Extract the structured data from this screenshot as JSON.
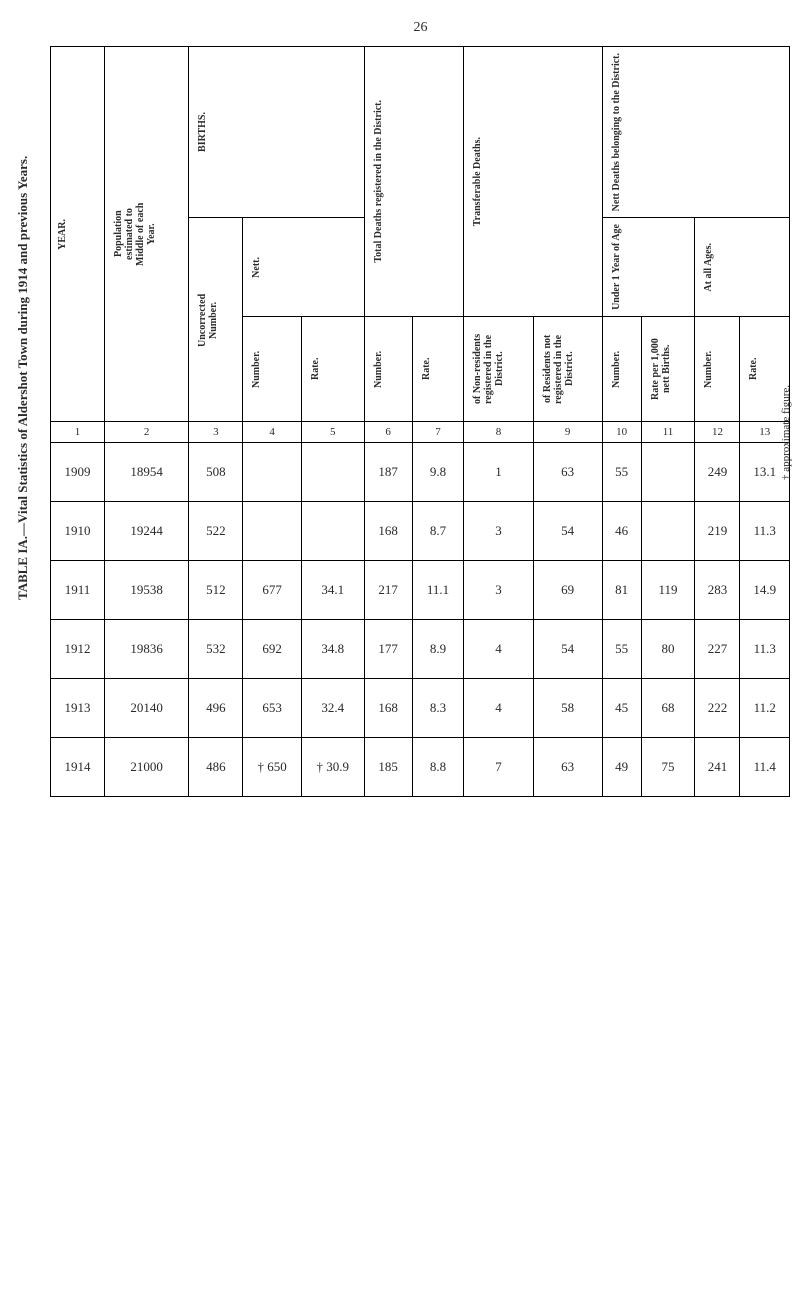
{
  "page_number": "26",
  "table_title": "TABLE IA.—Vital Statistics of Aldershot Town during 1914 and previous Years.",
  "footnote": "† approximate figure.",
  "sections": {
    "year": "YEAR.",
    "population": "Population estimated to Middle of each Year.",
    "births": {
      "label": "BIRTHS.",
      "uncorrected_number": "Uncorrected Number.",
      "nett": {
        "label": "Nett.",
        "number": "Number.",
        "rate": "Rate."
      }
    },
    "total_deaths": {
      "label": "Total Deaths registered in the District.",
      "number": "Number.",
      "rate": "Rate."
    },
    "transferable_deaths": {
      "label": "Transferable Deaths.",
      "non_residents": "of Non-residents registered in the District.",
      "residents_not": "of Residents not registered in the District."
    },
    "nett_deaths": {
      "label": "Nett Deaths belonging to the District.",
      "under_1": {
        "label": "Under 1 Year of Age",
        "number": "Number.",
        "rate_per_1000": "Rate per 1,000 nett Births."
      },
      "all_ages": {
        "label": "At all Ages.",
        "number": "Number.",
        "rate": "Rate."
      }
    }
  },
  "col_indices": {
    "c1": "1",
    "c2": "2",
    "c3": "3",
    "c4": "4",
    "c5": "5",
    "c6": "6",
    "c7": "7",
    "c8": "8",
    "c9": "9",
    "c10": "10",
    "c11": "11",
    "c12": "12",
    "c13": "13"
  },
  "rows": [
    {
      "year": "1909",
      "pop": "18954",
      "uncorr": "508",
      "nett_births_num": "",
      "nett_births_rate": "",
      "td_num": "187",
      "td_rate": "9.8",
      "trans_non": "1",
      "trans_res": "63",
      "u1_num": "55",
      "u1_rate": "",
      "all_num": "249",
      "all_rate": "13.1"
    },
    {
      "year": "1910",
      "pop": "19244",
      "uncorr": "522",
      "nett_births_num": "",
      "nett_births_rate": "",
      "td_num": "168",
      "td_rate": "8.7",
      "trans_non": "3",
      "trans_res": "54",
      "u1_num": "46",
      "u1_rate": "",
      "all_num": "219",
      "all_rate": "11.3"
    },
    {
      "year": "1911",
      "pop": "19538",
      "uncorr": "512",
      "nett_births_num": "677",
      "nett_births_rate": "34.1",
      "td_num": "217",
      "td_rate": "11.1",
      "trans_non": "3",
      "trans_res": "69",
      "u1_num": "81",
      "u1_rate": "119",
      "all_num": "283",
      "all_rate": "14.9"
    },
    {
      "year": "1912",
      "pop": "19836",
      "uncorr": "532",
      "nett_births_num": "692",
      "nett_births_rate": "34.8",
      "td_num": "177",
      "td_rate": "8.9",
      "trans_non": "4",
      "trans_res": "54",
      "u1_num": "55",
      "u1_rate": "80",
      "all_num": "227",
      "all_rate": "11.3"
    },
    {
      "year": "1913",
      "pop": "20140",
      "uncorr": "496",
      "nett_births_num": "653",
      "nett_births_rate": "32.4",
      "td_num": "168",
      "td_rate": "8.3",
      "trans_non": "4",
      "trans_res": "58",
      "u1_num": "45",
      "u1_rate": "68",
      "all_num": "222",
      "all_rate": "11.2"
    },
    {
      "year": "1914",
      "pop": "21000",
      "uncorr": "486",
      "nett_births_num": "† 650",
      "nett_births_rate": "† 30.9",
      "td_num": "185",
      "td_rate": "8.8",
      "trans_non": "7",
      "trans_res": "63",
      "u1_num": "49",
      "u1_rate": "75",
      "all_num": "241",
      "all_rate": "11.4"
    }
  ]
}
